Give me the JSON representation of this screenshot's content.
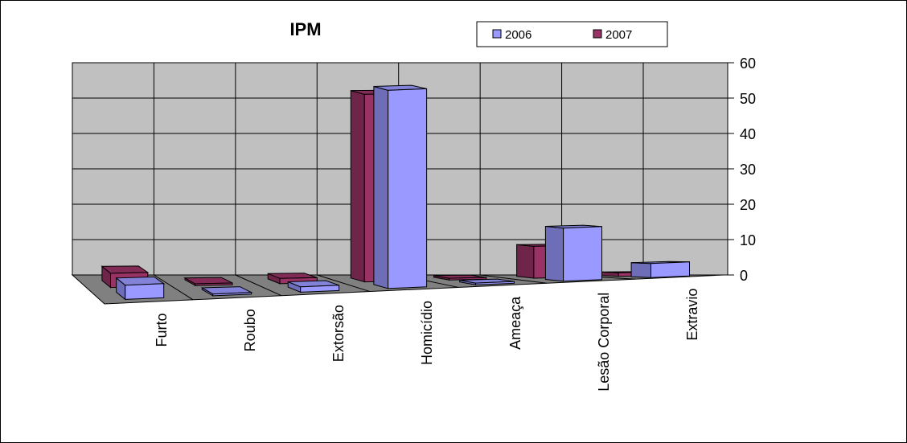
{
  "chart_data": {
    "type": "bar3d",
    "title": "IPM",
    "categories": [
      "Furto",
      "Roubo",
      "Extorsão",
      "Homicídio",
      "Ameaça",
      "Lesão Corporal",
      "Extravio"
    ],
    "series": [
      {
        "name": "2006",
        "color": "#9999ff",
        "values": [
          4,
          0.5,
          1.5,
          56,
          0.5,
          15,
          4
        ]
      },
      {
        "name": "2007",
        "color": "#993366",
        "values": [
          4,
          0.5,
          1.5,
          53,
          0.5,
          9,
          1
        ]
      }
    ],
    "ylim": [
      0,
      60
    ],
    "yticks": [
      0,
      10,
      20,
      30,
      40,
      50,
      60
    ],
    "grid": true,
    "legend": "top"
  }
}
